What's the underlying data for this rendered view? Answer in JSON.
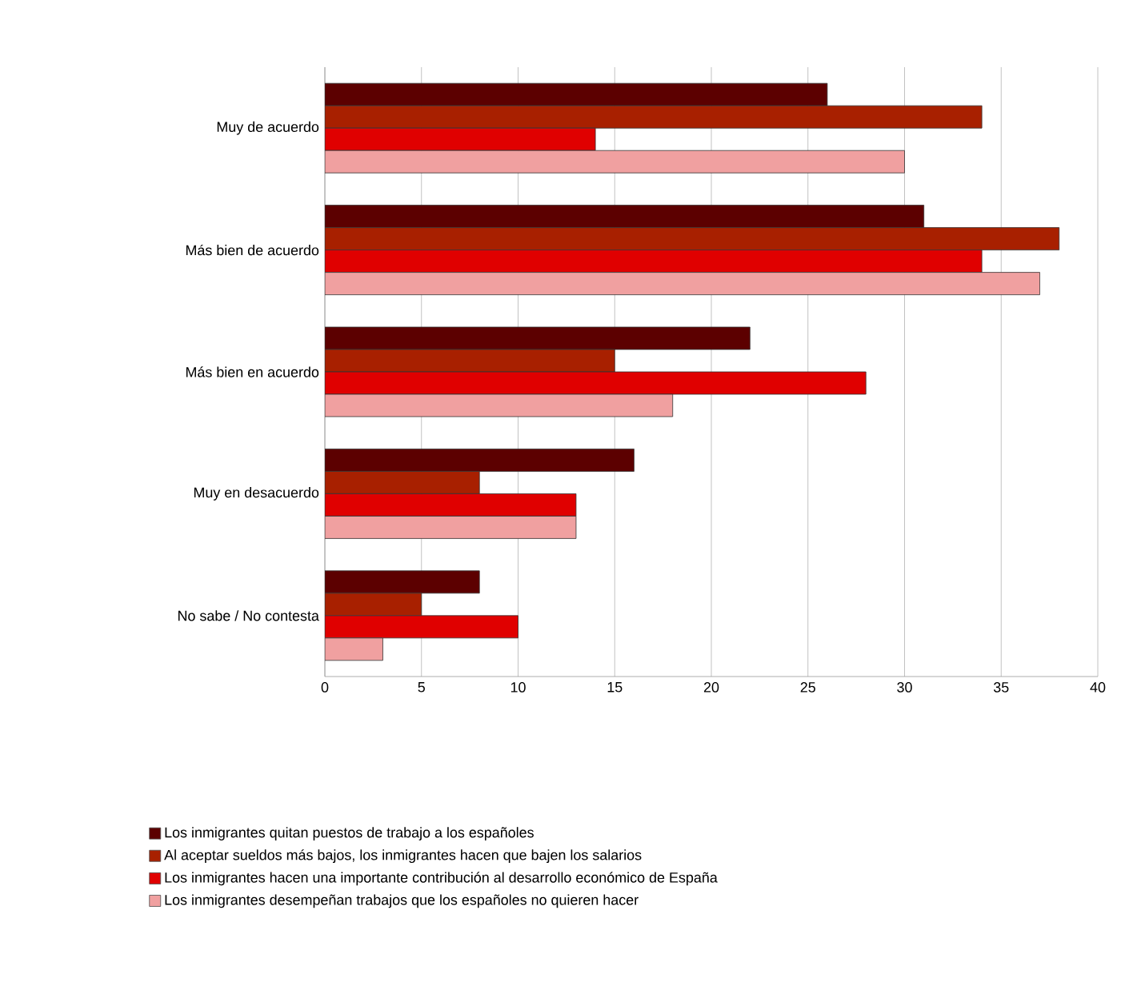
{
  "chart_data": {
    "type": "bar",
    "orientation": "horizontal",
    "categories": [
      "Muy de acuerdo",
      "Más bien de acuerdo",
      "Más bien en acuerdo",
      "Muy en desacuerdo",
      "No sabe / No contesta"
    ],
    "series": [
      {
        "name": "Los inmigrantes quitan puestos de trabajo a los españoles",
        "color": "#5c0000",
        "values": [
          26,
          31,
          22,
          16,
          8
        ]
      },
      {
        "name": "Al aceptar sueldos más bajos, los inmigrantes hacen que bajen los salarios",
        "color": "#a82000",
        "values": [
          34,
          38,
          15,
          8,
          5
        ]
      },
      {
        "name": "Los inmigrantes hacen una importante contribución al desarrollo económico de España",
        "color": "#e00000",
        "values": [
          14,
          34,
          28,
          13,
          10
        ]
      },
      {
        "name": "Los inmigrantes desempeñan trabajos que los españoles no quieren hacer",
        "color": "#f0a0a0",
        "values": [
          30,
          37,
          18,
          13,
          3
        ]
      }
    ],
    "xlim": [
      0,
      40
    ],
    "xticks": [
      0,
      5,
      10,
      15,
      20,
      25,
      30,
      35,
      40
    ],
    "grid": "x",
    "legend": "bottom"
  }
}
